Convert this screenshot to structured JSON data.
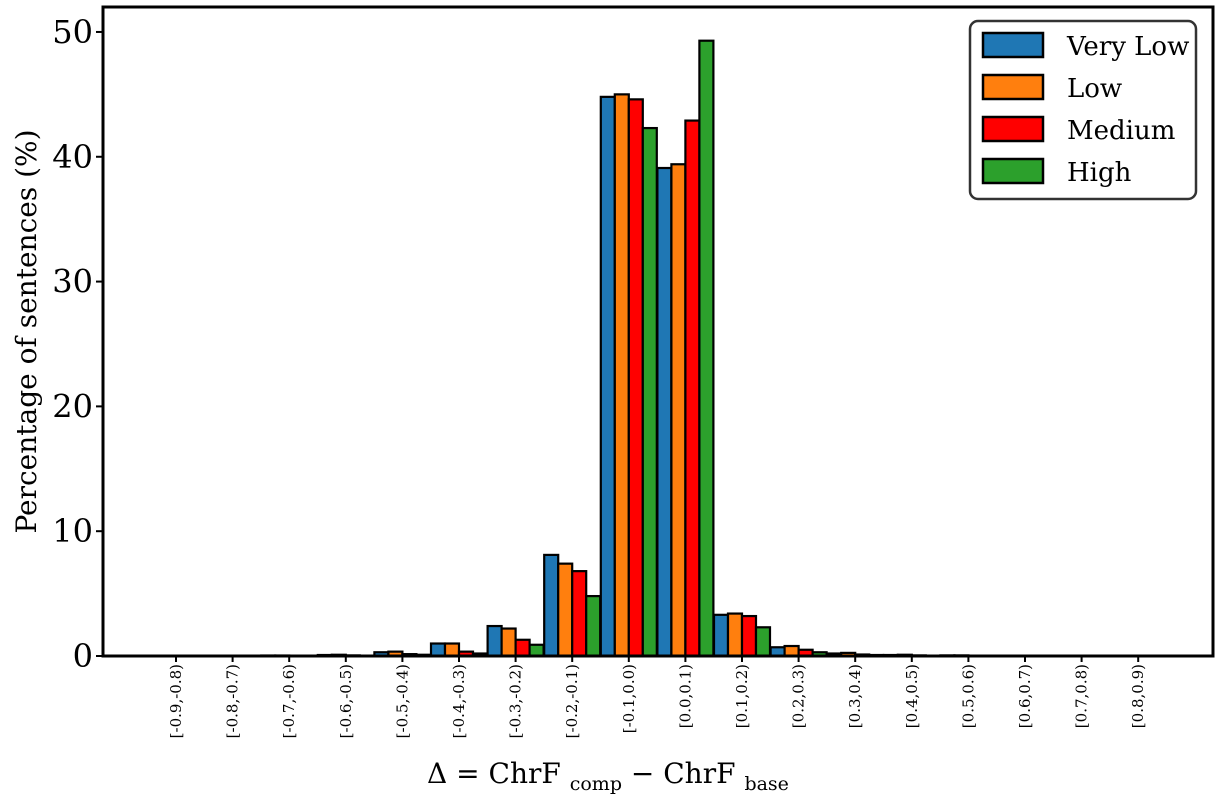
{
  "chart_data": {
    "type": "bar",
    "ylabel": "Percentage of sentences (%)",
    "xlabel": {
      "lhs": "Δ = ChrF",
      "sub1": "comp",
      "op": " − ChrF",
      "sub2": "base"
    },
    "ylim": [
      0,
      52
    ],
    "yticks": [
      0,
      10,
      20,
      30,
      40,
      50
    ],
    "grid": false,
    "legend_position": "top-right",
    "categories": [
      "[-0.9,-0.8)",
      "[-0.8,-0.7)",
      "[-0.7,-0.6)",
      "[-0.6,-0.5)",
      "[-0.5,-0.4)",
      "[-0.4,-0.3)",
      "[-0.3,-0.2)",
      "[-0.2,-0.1)",
      "[-0.1,0.0)",
      "[0.0,0.1)",
      "[0.1,0.2)",
      "[0.2,0.3)",
      "[0.3,0.4)",
      "[0.4,0.5)",
      "[0.5,0.6)",
      "[0.6,0.7)",
      "[0.7,0.8)",
      "[0.8,0.9)"
    ],
    "series": [
      {
        "name": "Very Low",
        "color": "#1f77b4",
        "values": [
          0.02,
          0.03,
          0.04,
          0.08,
          0.3,
          1.0,
          2.4,
          8.1,
          44.8,
          39.1,
          3.3,
          0.7,
          0.2,
          0.08,
          0.05,
          0.03,
          0.02,
          0.02
        ]
      },
      {
        "name": "Low",
        "color": "#ff7f0e",
        "values": [
          0.02,
          0.03,
          0.04,
          0.1,
          0.35,
          1.0,
          2.2,
          7.4,
          45.0,
          39.4,
          3.4,
          0.8,
          0.25,
          0.1,
          0.05,
          0.03,
          0.02,
          0.02
        ]
      },
      {
        "name": "Medium",
        "color": "#ff0000",
        "values": [
          0.01,
          0.02,
          0.03,
          0.05,
          0.15,
          0.35,
          1.3,
          6.8,
          44.6,
          42.9,
          3.2,
          0.5,
          0.12,
          0.05,
          0.03,
          0.02,
          0.01,
          0.01
        ]
      },
      {
        "name": "High",
        "color": "#2ca02c",
        "values": [
          0.01,
          0.01,
          0.02,
          0.03,
          0.1,
          0.2,
          0.9,
          4.8,
          42.3,
          49.3,
          2.3,
          0.3,
          0.08,
          0.03,
          0.02,
          0.01,
          0.01,
          0.01
        ]
      }
    ]
  }
}
